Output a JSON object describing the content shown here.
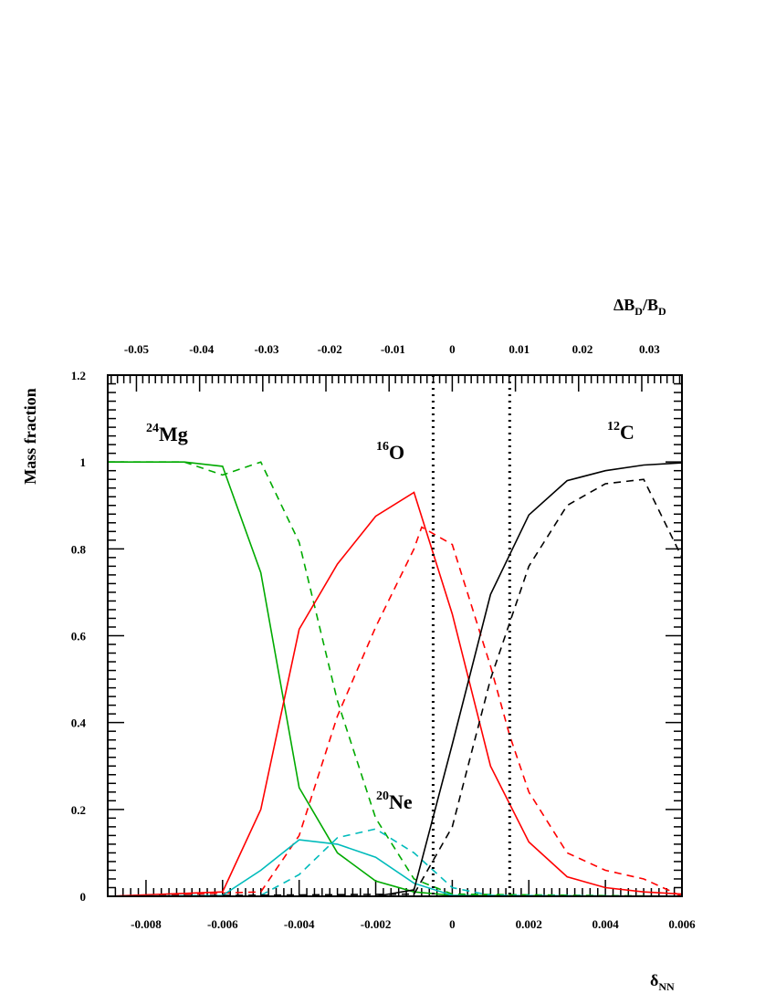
{
  "chart_data": {
    "type": "line",
    "ylabel": "Mass fraction",
    "xlabel": {
      "main": "δ",
      "sub": "NN"
    },
    "top_xlabel": {
      "prefix": "ΔB",
      "sub1": "D",
      "mid": "/B",
      "sub2": "D"
    },
    "xlim": [
      -0.009,
      0.006
    ],
    "ylim": [
      0,
      1.2
    ],
    "x_ticks": [
      {
        "value": -0.008,
        "label": "-0.008"
      },
      {
        "value": -0.006,
        "label": "-0.006"
      },
      {
        "value": -0.004,
        "label": "-0.004"
      },
      {
        "value": -0.002,
        "label": "-0.002"
      },
      {
        "value": 0,
        "label": "0"
      },
      {
        "value": 0.002,
        "label": "0.002"
      },
      {
        "value": 0.004,
        "label": "0.004"
      },
      {
        "value": 0.006,
        "label": "0.006"
      }
    ],
    "y_ticks": [
      {
        "value": 0,
        "label": "0"
      },
      {
        "value": 0.2,
        "label": "0.2"
      },
      {
        "value": 0.4,
        "label": "0.4"
      },
      {
        "value": 0.6,
        "label": "0.6"
      },
      {
        "value": 0.8,
        "label": "0.8"
      },
      {
        "value": 1.0,
        "label": "1"
      },
      {
        "value": 1.2,
        "label": "1.2"
      }
    ],
    "top_ticks": [
      {
        "value": -0.00825,
        "label": "-0.05"
      },
      {
        "value": -0.00655,
        "label": "-0.04"
      },
      {
        "value": -0.00485,
        "label": "-0.03"
      },
      {
        "value": -0.0032,
        "label": "-0.02"
      },
      {
        "value": -0.00155,
        "label": "-0.01"
      },
      {
        "value": 0,
        "label": "0"
      },
      {
        "value": 0.00175,
        "label": "0.01"
      },
      {
        "value": 0.0034,
        "label": "0.02"
      },
      {
        "value": 0.00515,
        "label": "0.03"
      }
    ],
    "vlines": [
      -0.0005,
      0.0015
    ],
    "series": [
      {
        "isotope": "24Mg",
        "style": "solid",
        "color": "#00aa00",
        "x": [
          -0.009,
          -0.007,
          -0.006,
          -0.005,
          -0.004,
          -0.003,
          -0.002,
          -0.001,
          0,
          0.006
        ],
        "y": [
          1.0,
          1.0,
          0.99,
          0.745,
          0.25,
          0.1,
          0.035,
          0.01,
          0.002,
          0.0
        ]
      },
      {
        "isotope": "24Mg",
        "style": "dashed",
        "color": "#00aa00",
        "x": [
          -0.009,
          -0.007,
          -0.006,
          -0.005,
          -0.004,
          -0.003,
          -0.002,
          -0.001,
          0,
          0.006
        ],
        "y": [
          1.0,
          1.0,
          0.97,
          1.0,
          0.815,
          0.45,
          0.18,
          0.04,
          0.005,
          0.0
        ]
      },
      {
        "isotope": "16O",
        "style": "solid",
        "color": "#ff0000",
        "x": [
          -0.009,
          -0.006,
          -0.005,
          -0.004,
          -0.003,
          -0.002,
          -0.001,
          0,
          0.001,
          0.002,
          0.003,
          0.004,
          0.005,
          0.006
        ],
        "y": [
          0.0,
          0.01,
          0.2,
          0.615,
          0.765,
          0.875,
          0.93,
          0.65,
          0.3,
          0.125,
          0.045,
          0.02,
          0.01,
          0.005
        ]
      },
      {
        "isotope": "16O",
        "style": "dashed",
        "color": "#ff0000",
        "x": [
          -0.009,
          -0.005,
          -0.004,
          -0.003,
          -0.002,
          -0.001,
          -0.0008,
          0,
          0.001,
          0.0015,
          0.002,
          0.003,
          0.004,
          0.005,
          0.006
        ],
        "y": [
          0.0,
          0.01,
          0.14,
          0.415,
          0.62,
          0.8,
          0.85,
          0.81,
          0.53,
          0.37,
          0.24,
          0.1,
          0.06,
          0.04,
          0.0
        ]
      },
      {
        "isotope": "20Ne",
        "style": "solid",
        "color": "#00bbbb",
        "x": [
          -0.009,
          -0.006,
          -0.005,
          -0.004,
          -0.003,
          -0.002,
          -0.001,
          0,
          0.001,
          0.006
        ],
        "y": [
          0.0,
          0.002,
          0.06,
          0.13,
          0.12,
          0.09,
          0.03,
          0.002,
          0.0,
          0.0
        ]
      },
      {
        "isotope": "20Ne",
        "style": "dashed",
        "color": "#00bbbb",
        "x": [
          -0.009,
          -0.005,
          -0.004,
          -0.003,
          -0.002,
          -0.001,
          0,
          0.001,
          0.006
        ],
        "y": [
          0.0,
          0.002,
          0.05,
          0.135,
          0.155,
          0.1,
          0.02,
          0.002,
          0.0
        ]
      },
      {
        "isotope": "12C",
        "style": "solid",
        "color": "#000000",
        "x": [
          -0.009,
          -0.002,
          -0.001,
          0,
          0.001,
          0.002,
          0.003,
          0.004,
          0.005,
          0.006
        ],
        "y": [
          0.0,
          0.0,
          0.015,
          0.35,
          0.695,
          0.878,
          0.957,
          0.98,
          0.993,
          0.998
        ]
      },
      {
        "isotope": "12C",
        "style": "dashed",
        "color": "#000000",
        "x": [
          -0.009,
          -0.001,
          0,
          0.001,
          0.002,
          0.003,
          0.004,
          0.005,
          0.006
        ],
        "y": [
          0.0,
          0.005,
          0.16,
          0.5,
          0.76,
          0.9,
          0.95,
          0.96,
          0.78
        ]
      }
    ],
    "annotations": [
      {
        "id": "mg",
        "mass": "24",
        "symbol": "Mg"
      },
      {
        "id": "o",
        "mass": "16",
        "symbol": "O"
      },
      {
        "id": "ne",
        "mass": "20",
        "symbol": "Ne"
      },
      {
        "id": "c",
        "mass": "12",
        "symbol": "C"
      }
    ]
  }
}
